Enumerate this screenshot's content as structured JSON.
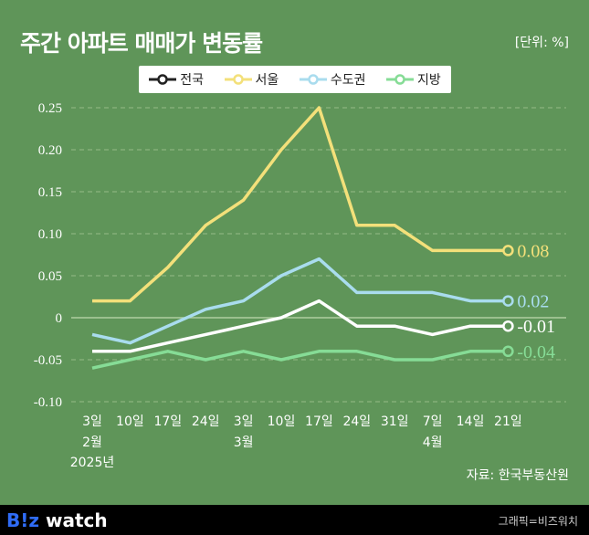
{
  "title": "주간 아파트 매매가 변동률",
  "unit": "[단위: %]",
  "source": "자료: 한국부동산원",
  "footer": {
    "logo_b": "B",
    "logo_excl": "!",
    "logo_z": "z",
    "logo_watch": " watch",
    "credit": "그래픽=비즈워치"
  },
  "chart_data": {
    "type": "line",
    "categories": [
      "3일",
      "10일",
      "17일",
      "24일",
      "3일",
      "10일",
      "17일",
      "24일",
      "31일",
      "7일",
      "14일",
      "21일"
    ],
    "month_labels": [
      {
        "index": 0,
        "label": "2월"
      },
      {
        "index": 4,
        "label": "3월"
      },
      {
        "index": 9,
        "label": "4월"
      }
    ],
    "year_label": "2025년",
    "ylim": [
      -0.1,
      0.25
    ],
    "yticks": [
      "0.25",
      "0.20",
      "0.15",
      "0.10",
      "0.05",
      "0",
      "-0.05",
      "-0.10"
    ],
    "grid": true,
    "legend": "top",
    "series": [
      {
        "name": "전국",
        "color": "#ffffff",
        "values": [
          -0.04,
          -0.04,
          -0.03,
          -0.02,
          -0.01,
          0.0,
          0.02,
          -0.01,
          -0.01,
          -0.02,
          -0.01,
          -0.01
        ],
        "end_label": "-0.01"
      },
      {
        "name": "서울",
        "color": "#f3e07a",
        "values": [
          0.02,
          0.02,
          0.06,
          0.11,
          0.14,
          0.2,
          0.25,
          0.11,
          0.11,
          0.08,
          0.08,
          0.08
        ],
        "end_label": "0.08"
      },
      {
        "name": "수도권",
        "color": "#a9dcee",
        "values": [
          -0.02,
          -0.03,
          -0.01,
          0.01,
          0.02,
          0.05,
          0.07,
          0.03,
          0.03,
          0.03,
          0.02,
          0.02
        ],
        "end_label": "0.02"
      },
      {
        "name": "지방",
        "color": "#86dc96",
        "values": [
          -0.06,
          -0.05,
          -0.04,
          -0.05,
          -0.04,
          -0.05,
          -0.04,
          -0.04,
          -0.05,
          -0.05,
          -0.04,
          -0.04
        ],
        "end_label": "-0.04"
      }
    ]
  }
}
